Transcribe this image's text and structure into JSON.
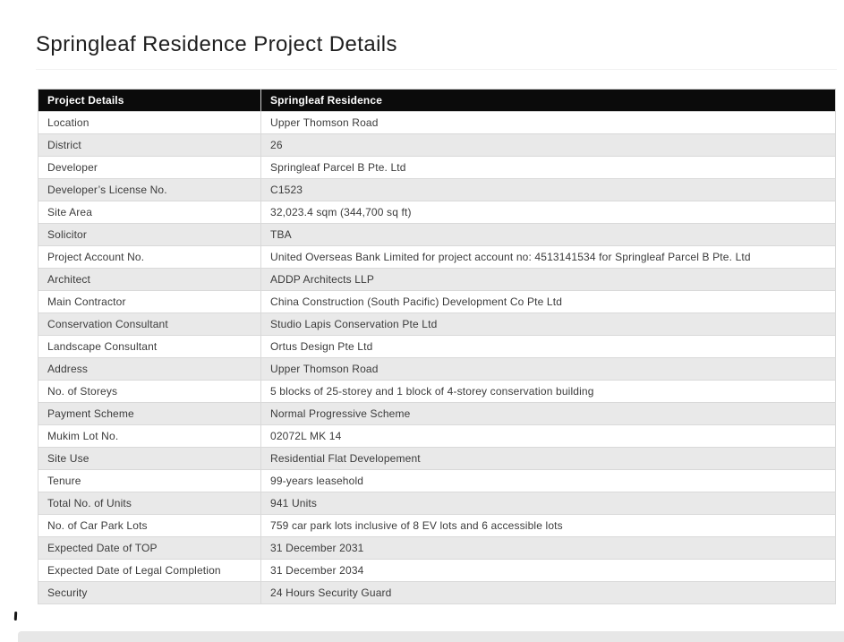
{
  "page": {
    "title": "Springleaf Residence Project Details"
  },
  "table": {
    "header": {
      "col1": "Project Details",
      "col2": "Springleaf Residence"
    },
    "rows": [
      {
        "label": "Location",
        "value": "Upper Thomson Road"
      },
      {
        "label": "District",
        "value": "26"
      },
      {
        "label": "Developer",
        "value": "Springleaf Parcel B Pte. Ltd"
      },
      {
        "label": "Developer’s License No.",
        "value": "C1523"
      },
      {
        "label": "Site Area",
        "value": "32,023.4 sqm (344,700 sq ft)"
      },
      {
        "label": "Solicitor",
        "value": "TBA"
      },
      {
        "label": "Project Account No.",
        "value": "United Overseas Bank Limited for project account no: 4513141534 for Springleaf Parcel B Pte. Ltd"
      },
      {
        "label": "Architect",
        "value": "ADDP Architects LLP"
      },
      {
        "label": "Main Contractor",
        "value": "China Construction (South Pacific) Development Co Pte Ltd"
      },
      {
        "label": "Conservation Consultant",
        "value": "Studio Lapis Conservation Pte Ltd"
      },
      {
        "label": "Landscape Consultant",
        "value": "Ortus Design Pte Ltd"
      },
      {
        "label": "Address",
        "value": "Upper Thomson Road"
      },
      {
        "label": "No. of Storeys",
        "value": "5 blocks of 25-storey and 1 block of 4-storey conservation building"
      },
      {
        "label": "Payment Scheme",
        "value": "Normal Progressive Scheme"
      },
      {
        "label": "Mukim Lot No.",
        "value": "02072L MK 14"
      },
      {
        "label": "Site Use",
        "value": "Residential Flat Developement"
      },
      {
        "label": "Tenure",
        "value": "99-years leasehold"
      },
      {
        "label": "Total No. of Units",
        "value": "941 Units"
      },
      {
        "label": "No. of Car Park Lots",
        "value": "759 car park lots inclusive of 8 EV lots and 6 accessible lots"
      },
      {
        "label": "Expected Date of TOP",
        "value": "31 December 2031"
      },
      {
        "label": "Expected Date of Legal Completion",
        "value": "31 December 2034"
      },
      {
        "label": "Security",
        "value": "24 Hours Security Guard"
      }
    ]
  },
  "colors": {
    "header_bg": "#0b0b0b",
    "header_text": "#ffffff",
    "row_alt_bg": "#e9e9e9",
    "row_bg": "#ffffff",
    "border": "#d9d9d9",
    "body_text": "#3b3b3b",
    "title_text": "#1e1e1e"
  }
}
